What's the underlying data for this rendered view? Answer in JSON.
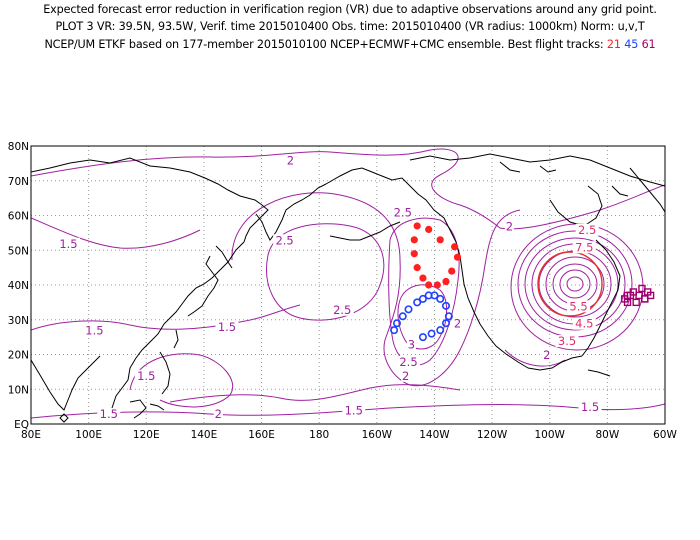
{
  "header": {
    "line1": "Expected forecast error reduction in verification region (VR) due to adaptive observations around any grid point.",
    "line2": "PLOT 3 VR: 39.5N, 93.5W, Verif. time 2015010400 Obs. time: 2015010400 (VR radius: 1000km) Norm: u,v,T",
    "line3_prefix": "NCEP/UM ETKF based on 177-member 2015010100 NCEP+ECMWF+CMC ensemble. Best flight tracks:",
    "track1": "21",
    "track2": "45",
    "track3": "61"
  },
  "colors": {
    "contour": "#a020a0",
    "vr_circle": "#e03030",
    "track1": "#ff2020",
    "track2": "#2040ff",
    "track3": "#a0006e",
    "coast": "#000000",
    "grid": "#9a9a9a"
  },
  "axes": {
    "x_ticks": [
      "80E",
      "100E",
      "120E",
      "140E",
      "160E",
      "180",
      "160W",
      "140W",
      "120W",
      "100W",
      "80W",
      "60W"
    ],
    "y_ticks": [
      "EQ",
      "10N",
      "20N",
      "30N",
      "40N",
      "50N",
      "60N",
      "70N",
      "80N"
    ]
  },
  "map_bounds": {
    "lon_min": 80,
    "lon_max": 300,
    "lat_min": 0,
    "lat_max": 80
  },
  "contour_labels": [
    {
      "text": "2",
      "lon": 170,
      "lat": 75
    },
    {
      "text": "1.5",
      "lon": 93,
      "lat": 51
    },
    {
      "text": "2.5",
      "lon": 168,
      "lat": 52
    },
    {
      "text": "2.5",
      "lon": 209,
      "lat": 60
    },
    {
      "text": "2",
      "lon": 246,
      "lat": 56
    },
    {
      "text": "1.5",
      "lon": 102,
      "lat": 26
    },
    {
      "text": "1.5",
      "lon": 148,
      "lat": 27
    },
    {
      "text": "2.5",
      "lon": 188,
      "lat": 32
    },
    {
      "text": "2",
      "lon": 228,
      "lat": 28
    },
    {
      "text": "3",
      "lon": 212,
      "lat": 22
    },
    {
      "text": "2.5",
      "lon": 211,
      "lat": 17
    },
    {
      "text": "2",
      "lon": 210,
      "lat": 13
    },
    {
      "text": "1.5",
      "lon": 120,
      "lat": 13
    },
    {
      "text": "1.5",
      "lon": 107,
      "lat": 2
    },
    {
      "text": "2",
      "lon": 145,
      "lat": 2
    },
    {
      "text": "1.5",
      "lon": 192,
      "lat": 3
    },
    {
      "text": "1.5",
      "lon": 274,
      "lat": 4
    },
    {
      "text": "2",
      "lon": 259,
      "lat": 19
    },
    {
      "text": "2.5",
      "lon": 273,
      "lat": 55
    },
    {
      "text": "7.5",
      "lon": 272,
      "lat": 50
    },
    {
      "text": "5.5",
      "lon": 270,
      "lat": 33
    },
    {
      "text": "4.5",
      "lon": 272,
      "lat": 28
    },
    {
      "text": "3.5",
      "lon": 266,
      "lat": 23
    }
  ],
  "tracks": {
    "t21": [
      [
        214,
        57
      ],
      [
        218,
        56
      ],
      [
        222,
        53
      ],
      [
        227,
        51
      ],
      [
        228,
        48
      ],
      [
        226,
        44
      ],
      [
        224,
        41
      ],
      [
        221,
        40
      ],
      [
        218,
        40
      ],
      [
        216,
        42
      ],
      [
        214,
        45
      ],
      [
        213,
        49
      ],
      [
        213,
        53
      ]
    ],
    "t45": [
      [
        206,
        27
      ],
      [
        207,
        29
      ],
      [
        209,
        31
      ],
      [
        211,
        33
      ],
      [
        214,
        35
      ],
      [
        216,
        36
      ],
      [
        218,
        37
      ],
      [
        220,
        37
      ],
      [
        222,
        36
      ],
      [
        224,
        34
      ],
      [
        225,
        31
      ],
      [
        224,
        29
      ],
      [
        222,
        27
      ],
      [
        219,
        26
      ],
      [
        216,
        25
      ]
    ],
    "t61": [
      [
        287,
        37
      ],
      [
        289,
        38
      ],
      [
        292,
        39
      ],
      [
        294,
        38
      ],
      [
        295,
        37
      ],
      [
        293,
        36
      ],
      [
        290,
        35
      ],
      [
        287,
        35
      ],
      [
        286,
        36
      ],
      [
        288,
        37
      ],
      [
        291,
        37
      ],
      [
        293,
        36
      ]
    ]
  }
}
